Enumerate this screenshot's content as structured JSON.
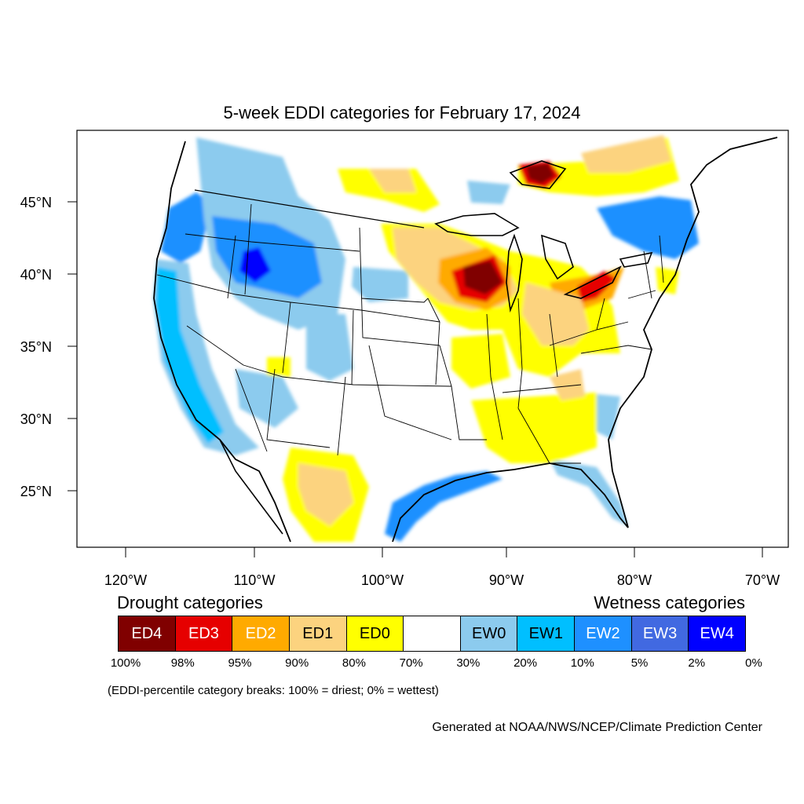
{
  "title": "5-week EDDI categories for February 17, 2024",
  "axes": {
    "lat_labels": [
      "45°N",
      "40°N",
      "35°N",
      "30°N",
      "25°N"
    ],
    "lon_labels": [
      "120°W",
      "110°W",
      "100°W",
      "90°W",
      "80°W",
      "70°W"
    ]
  },
  "legend": {
    "drought_heading": "Drought categories",
    "wetness_heading": "Wetness categories",
    "categories": [
      {
        "label": "ED4",
        "color": "#800000",
        "text_color": "#ffffff"
      },
      {
        "label": "ED3",
        "color": "#e60000",
        "text_color": "#ffffff"
      },
      {
        "label": "ED2",
        "color": "#ffaa00",
        "text_color": "#ffffff"
      },
      {
        "label": "ED1",
        "color": "#fcd37f",
        "text_color": "#000000"
      },
      {
        "label": "ED0",
        "color": "#ffff00",
        "text_color": "#000000"
      },
      {
        "label": "",
        "color": "#ffffff",
        "text_color": "#000000"
      },
      {
        "label": "EW0",
        "color": "#8ccbee",
        "text_color": "#000000"
      },
      {
        "label": "EW1",
        "color": "#00bfff",
        "text_color": "#000000"
      },
      {
        "label": "EW2",
        "color": "#1e90ff",
        "text_color": "#ffffff"
      },
      {
        "label": "EW3",
        "color": "#4169e1",
        "text_color": "#ffffff"
      },
      {
        "label": "EW4",
        "color": "#0000ff",
        "text_color": "#ffffff"
      }
    ],
    "breaks": [
      "100%",
      "98%",
      "95%",
      "90%",
      "80%",
      "70%",
      "30%",
      "20%",
      "10%",
      "5%",
      "2%",
      "0%"
    ]
  },
  "note": "(EDDI-percentile category breaks: 100% = driest; 0% = wettest)",
  "credit": "Generated at NOAA/NWS/NCEP/Climate Prediction Center",
  "regions": [
    {
      "name": "pacific-northwest-wet",
      "category": "EW2"
    },
    {
      "name": "california-coast-wet",
      "category": "EW1"
    },
    {
      "name": "idaho-montana-wet",
      "category": "EW3"
    },
    {
      "name": "upper-midwest-drought",
      "category": "ED4"
    },
    {
      "name": "michigan-ontario-drought",
      "category": "ED3"
    },
    {
      "name": "ohio-valley-dry",
      "category": "ED0"
    },
    {
      "name": "west-texas-dry",
      "category": "ED1"
    },
    {
      "name": "northeast-wet",
      "category": "EW2"
    },
    {
      "name": "gulf-coast-wet",
      "category": "EW2"
    },
    {
      "name": "southeast-dry",
      "category": "ED0"
    },
    {
      "name": "quebec-dry",
      "category": "ED1"
    }
  ]
}
